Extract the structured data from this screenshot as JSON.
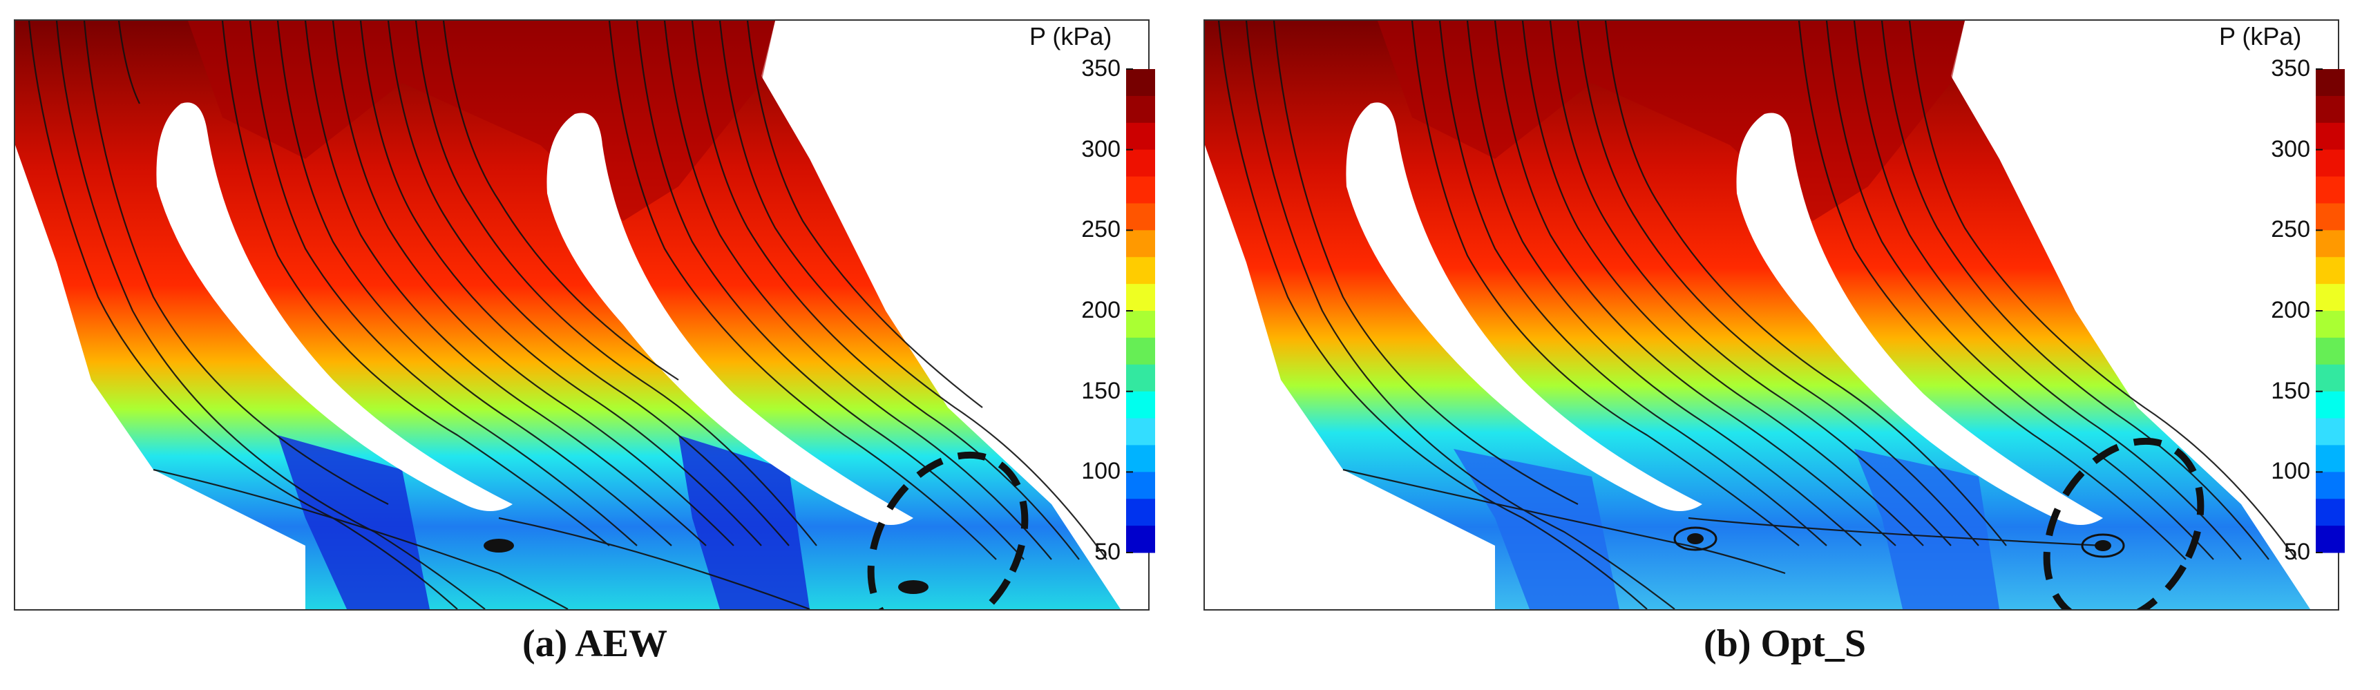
{
  "figure": {
    "panels": [
      {
        "id": "a",
        "caption": "(a) AEW"
      },
      {
        "id": "b",
        "caption": "(b) Opt_S"
      }
    ]
  },
  "colorbar": {
    "title": "P (kPa)",
    "ticks": [
      "350",
      "300",
      "250",
      "200",
      "150",
      "100",
      "50"
    ],
    "min": 50,
    "max": 350,
    "levels": [
      "#0000cc",
      "#0033ee",
      "#0077ff",
      "#00b3ff",
      "#33ddff",
      "#00ffee",
      "#33e8a0",
      "#66ee55",
      "#aaff33",
      "#eeff22",
      "#ffcc00",
      "#ff9900",
      "#ff5500",
      "#ff2a00",
      "#ee1100",
      "#cc0000",
      "#990000",
      "#770000"
    ]
  }
}
